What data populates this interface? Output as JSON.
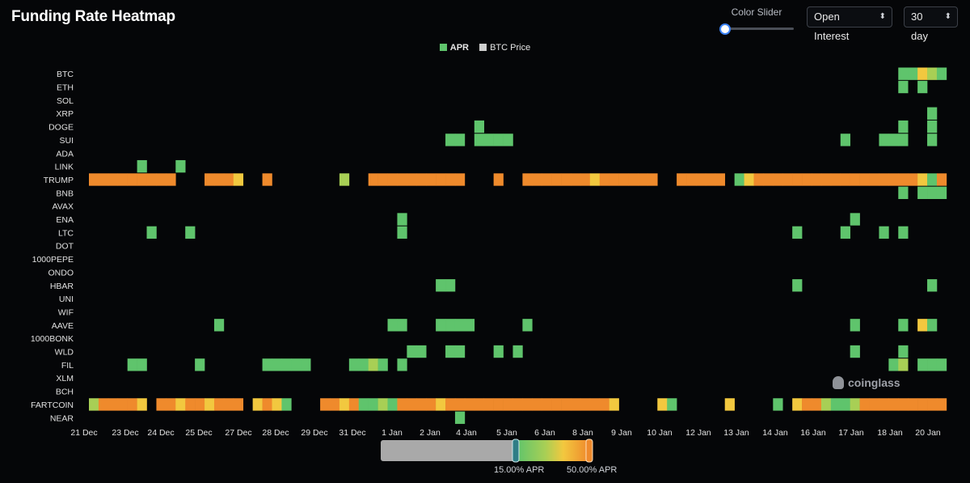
{
  "title": "Funding Rate Heatmap",
  "controls": {
    "color_slider_label": "Color Slider",
    "open_interest": "Open Interest",
    "range": "30 day"
  },
  "legend": [
    {
      "label": "APR",
      "color": "#5fc46c"
    },
    {
      "label": "BTC Price",
      "color": "#cfcfcf"
    }
  ],
  "watermark": "coinglass",
  "colors": {
    "green": "#5fc46c",
    "yellow_green": "#a8cf55",
    "yellow": "#f2c83f",
    "orange": "#ef8a2c",
    "background": "#050608"
  },
  "scale": {
    "low_label": "15.00% APR",
    "high_label": "50.00% APR"
  },
  "chart_data": {
    "type": "heatmap",
    "title": "Funding Rate Heatmap",
    "rows": [
      "BTC",
      "ETH",
      "SOL",
      "XRP",
      "DOGE",
      "SUI",
      "ADA",
      "LINK",
      "TRUMP",
      "BNB",
      "AVAX",
      "ENA",
      "LTC",
      "DOT",
      "1000PEPE",
      "ONDO",
      "HBAR",
      "UNI",
      "WIF",
      "AAVE",
      "1000BONK",
      "WLD",
      "FIL",
      "XLM",
      "BCH",
      "FARTCOIN",
      "NEAR"
    ],
    "x_ticks": [
      "21 Dec",
      "23 Dec",
      "24 Dec",
      "25 Dec",
      "27 Dec",
      "28 Dec",
      "29 Dec",
      "31 Dec",
      "1 Jan",
      "2 Jan",
      "4 Jan",
      "5 Jan",
      "6 Jan",
      "8 Jan",
      "9 Jan",
      "10 Jan",
      "12 Jan",
      "13 Jan",
      "14 Jan",
      "16 Jan",
      "17 Jan",
      "18 Jan",
      "20 Jan"
    ],
    "legend": [
      "APR",
      "BTC Price"
    ],
    "color_scale": {
      "min_label": "15.00% APR",
      "max_label": "50.00% APR"
    },
    "cells": {
      "BTC": [
        [
          84,
          "g"
        ],
        [
          85,
          "g"
        ],
        [
          86,
          "y"
        ],
        [
          87,
          "yg"
        ],
        [
          88,
          "g"
        ]
      ],
      "ETH": [
        [
          84,
          "g"
        ],
        [
          86,
          "g"
        ]
      ],
      "XRP": [
        [
          87,
          "g"
        ]
      ],
      "DOGE": [
        [
          40,
          "g"
        ],
        [
          84,
          "g"
        ],
        [
          87,
          "g"
        ]
      ],
      "SUI": [
        [
          37,
          "g"
        ],
        [
          38,
          "g"
        ],
        [
          40,
          "g"
        ],
        [
          41,
          "g"
        ],
        [
          42,
          "g"
        ],
        [
          43,
          "g"
        ],
        [
          78,
          "g"
        ],
        [
          82,
          "g"
        ],
        [
          83,
          "g"
        ],
        [
          84,
          "g"
        ],
        [
          87,
          "g"
        ]
      ],
      "LINK": [
        [
          5,
          "g"
        ],
        [
          9,
          "g"
        ]
      ],
      "TRUMP": [
        [
          0,
          "o"
        ],
        [
          1,
          "o"
        ],
        [
          2,
          "o"
        ],
        [
          3,
          "o"
        ],
        [
          4,
          "o"
        ],
        [
          5,
          "o"
        ],
        [
          6,
          "o"
        ],
        [
          7,
          "o"
        ],
        [
          8,
          "o"
        ],
        [
          12,
          "o"
        ],
        [
          13,
          "o"
        ],
        [
          14,
          "o"
        ],
        [
          15,
          "y"
        ],
        [
          18,
          "o"
        ],
        [
          26,
          "yg"
        ],
        [
          29,
          "o"
        ],
        [
          30,
          "o"
        ],
        [
          31,
          "o"
        ],
        [
          32,
          "o"
        ],
        [
          33,
          "o"
        ],
        [
          34,
          "o"
        ],
        [
          35,
          "o"
        ],
        [
          36,
          "o"
        ],
        [
          37,
          "o"
        ],
        [
          38,
          "o"
        ],
        [
          42,
          "o"
        ],
        [
          45,
          "o"
        ],
        [
          46,
          "o"
        ],
        [
          47,
          "o"
        ],
        [
          48,
          "o"
        ],
        [
          49,
          "o"
        ],
        [
          50,
          "o"
        ],
        [
          51,
          "o"
        ],
        [
          52,
          "y"
        ],
        [
          53,
          "o"
        ],
        [
          54,
          "o"
        ],
        [
          55,
          "o"
        ],
        [
          56,
          "o"
        ],
        [
          57,
          "o"
        ],
        [
          58,
          "o"
        ],
        [
          61,
          "o"
        ],
        [
          62,
          "o"
        ],
        [
          63,
          "o"
        ],
        [
          64,
          "o"
        ],
        [
          65,
          "o"
        ],
        [
          67,
          "g"
        ],
        [
          68,
          "y"
        ],
        [
          69,
          "o"
        ],
        [
          70,
          "o"
        ],
        [
          71,
          "o"
        ],
        [
          72,
          "o"
        ],
        [
          73,
          "o"
        ],
        [
          74,
          "o"
        ],
        [
          75,
          "o"
        ],
        [
          76,
          "o"
        ],
        [
          77,
          "o"
        ],
        [
          78,
          "o"
        ],
        [
          79,
          "o"
        ],
        [
          80,
          "o"
        ],
        [
          81,
          "o"
        ],
        [
          82,
          "o"
        ],
        [
          83,
          "o"
        ],
        [
          84,
          "o"
        ],
        [
          85,
          "o"
        ],
        [
          86,
          "y"
        ],
        [
          87,
          "g"
        ],
        [
          88,
          "o"
        ]
      ],
      "BNB": [
        [
          84,
          "g"
        ],
        [
          86,
          "g"
        ],
        [
          87,
          "g"
        ],
        [
          88,
          "g"
        ]
      ],
      "ENA": [
        [
          32,
          "g"
        ],
        [
          79,
          "g"
        ]
      ],
      "LTC": [
        [
          6,
          "g"
        ],
        [
          10,
          "g"
        ],
        [
          32,
          "g"
        ],
        [
          73,
          "g"
        ],
        [
          78,
          "g"
        ],
        [
          82,
          "g"
        ],
        [
          84,
          "g"
        ]
      ],
      "HBAR": [
        [
          36,
          "g"
        ],
        [
          37,
          "g"
        ],
        [
          73,
          "g"
        ],
        [
          87,
          "g"
        ]
      ],
      "AAVE": [
        [
          13,
          "g"
        ],
        [
          31,
          "g"
        ],
        [
          32,
          "g"
        ],
        [
          36,
          "g"
        ],
        [
          37,
          "g"
        ],
        [
          38,
          "g"
        ],
        [
          39,
          "g"
        ],
        [
          45,
          "g"
        ],
        [
          79,
          "g"
        ],
        [
          84,
          "g"
        ],
        [
          86,
          "y"
        ],
        [
          87,
          "g"
        ]
      ],
      "WLD": [
        [
          33,
          "g"
        ],
        [
          34,
          "g"
        ],
        [
          37,
          "g"
        ],
        [
          38,
          "g"
        ],
        [
          42,
          "g"
        ],
        [
          44,
          "g"
        ],
        [
          79,
          "g"
        ],
        [
          84,
          "g"
        ]
      ],
      "FIL": [
        [
          4,
          "g"
        ],
        [
          5,
          "g"
        ],
        [
          11,
          "g"
        ],
        [
          18,
          "g"
        ],
        [
          19,
          "g"
        ],
        [
          20,
          "g"
        ],
        [
          21,
          "g"
        ],
        [
          22,
          "g"
        ],
        [
          27,
          "g"
        ],
        [
          28,
          "g"
        ],
        [
          29,
          "yg"
        ],
        [
          30,
          "g"
        ],
        [
          32,
          "g"
        ],
        [
          83,
          "g"
        ],
        [
          84,
          "yg"
        ],
        [
          86,
          "g"
        ],
        [
          87,
          "g"
        ],
        [
          88,
          "g"
        ]
      ],
      "FARTCOIN": [
        [
          0,
          "yg"
        ],
        [
          1,
          "o"
        ],
        [
          2,
          "o"
        ],
        [
          3,
          "o"
        ],
        [
          4,
          "o"
        ],
        [
          5,
          "y"
        ],
        [
          7,
          "o"
        ],
        [
          8,
          "o"
        ],
        [
          9,
          "y"
        ],
        [
          10,
          "o"
        ],
        [
          11,
          "o"
        ],
        [
          12,
          "y"
        ],
        [
          13,
          "o"
        ],
        [
          14,
          "o"
        ],
        [
          15,
          "o"
        ],
        [
          17,
          "y"
        ],
        [
          18,
          "o"
        ],
        [
          19,
          "y"
        ],
        [
          20,
          "g"
        ],
        [
          24,
          "o"
        ],
        [
          25,
          "o"
        ],
        [
          26,
          "y"
        ],
        [
          27,
          "o"
        ],
        [
          28,
          "g"
        ],
        [
          29,
          "g"
        ],
        [
          30,
          "yg"
        ],
        [
          31,
          "g"
        ],
        [
          32,
          "o"
        ],
        [
          33,
          "o"
        ],
        [
          34,
          "o"
        ],
        [
          35,
          "o"
        ],
        [
          36,
          "y"
        ],
        [
          37,
          "o"
        ],
        [
          38,
          "o"
        ],
        [
          39,
          "o"
        ],
        [
          40,
          "o"
        ],
        [
          41,
          "o"
        ],
        [
          42,
          "o"
        ],
        [
          43,
          "o"
        ],
        [
          44,
          "o"
        ],
        [
          45,
          "o"
        ],
        [
          46,
          "o"
        ],
        [
          47,
          "o"
        ],
        [
          48,
          "o"
        ],
        [
          49,
          "o"
        ],
        [
          50,
          "o"
        ],
        [
          51,
          "o"
        ],
        [
          52,
          "o"
        ],
        [
          53,
          "o"
        ],
        [
          54,
          "y"
        ],
        [
          59,
          "y"
        ],
        [
          60,
          "g"
        ],
        [
          66,
          "y"
        ],
        [
          71,
          "g"
        ],
        [
          73,
          "y"
        ],
        [
          74,
          "o"
        ],
        [
          75,
          "o"
        ],
        [
          76,
          "yg"
        ],
        [
          77,
          "g"
        ],
        [
          78,
          "g"
        ],
        [
          79,
          "yg"
        ],
        [
          80,
          "o"
        ],
        [
          81,
          "o"
        ],
        [
          82,
          "o"
        ],
        [
          83,
          "o"
        ],
        [
          84,
          "o"
        ],
        [
          85,
          "o"
        ],
        [
          86,
          "o"
        ],
        [
          87,
          "o"
        ],
        [
          88,
          "o"
        ]
      ],
      "NEAR": [
        [
          38,
          "g"
        ]
      ]
    },
    "columns": 89
  }
}
